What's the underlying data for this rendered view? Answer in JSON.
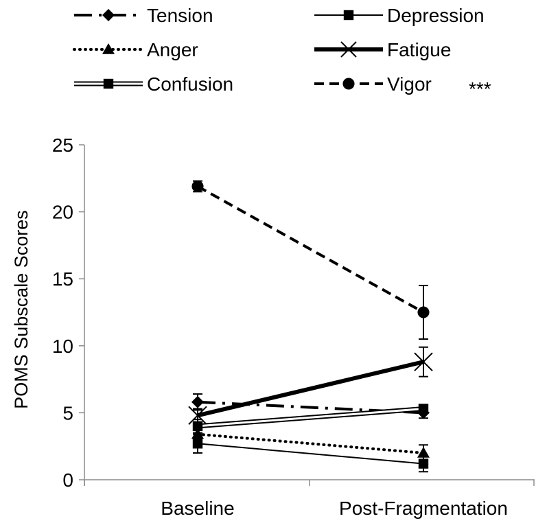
{
  "chart_data": {
    "type": "line",
    "title": "",
    "xlabel": "",
    "ylabel": "POMS Subscale Scores",
    "categories": [
      "Baseline",
      "Post-Fragmentation"
    ],
    "ylim": [
      0,
      25
    ],
    "yticks": [
      "0",
      "5",
      "10",
      "15",
      "20",
      "25"
    ],
    "grid": false,
    "legend_position": "top",
    "significance_label": "***",
    "series": [
      {
        "name": "Tension",
        "marker": "diamond",
        "line": "dash-dot",
        "values": [
          5.8,
          5.0
        ],
        "errors": [
          0.6,
          0.4
        ]
      },
      {
        "name": "Depression",
        "marker": "square",
        "line": "thin",
        "values": [
          2.7,
          1.2
        ],
        "errors": [
          0.7,
          0.6
        ]
      },
      {
        "name": "Anger",
        "marker": "triangle",
        "line": "dotted",
        "values": [
          3.4,
          2.0
        ],
        "errors": [
          0.5,
          0.6
        ]
      },
      {
        "name": "Fatigue",
        "marker": "x",
        "line": "thick",
        "values": [
          4.8,
          8.8
        ],
        "errors": [
          0.5,
          1.1
        ]
      },
      {
        "name": "Confusion",
        "marker": "square",
        "line": "double",
        "values": [
          4.0,
          5.3
        ],
        "errors": [
          0.5,
          0.3
        ]
      },
      {
        "name": "Vigor",
        "marker": "circle",
        "line": "dashed",
        "values": [
          21.9,
          12.5
        ],
        "errors": [
          0.4,
          2.0
        ]
      }
    ]
  }
}
